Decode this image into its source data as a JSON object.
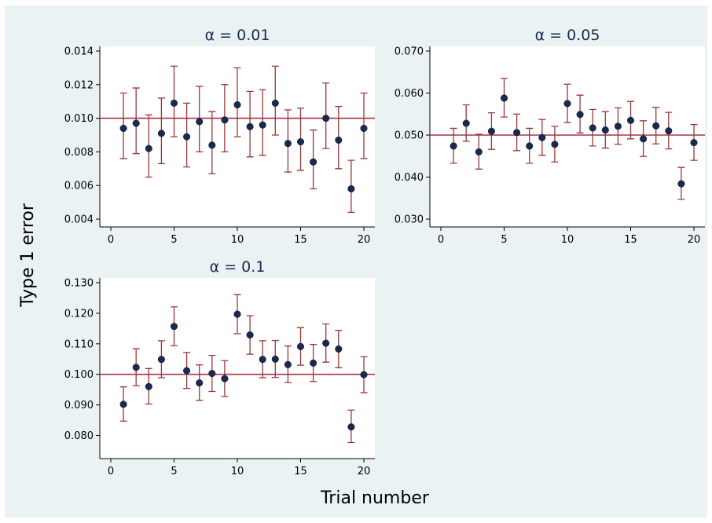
{
  "figure": {
    "ylabel": "Type 1 error",
    "xlabel": "Trial number"
  },
  "chart_data": [
    {
      "type": "scatter",
      "title": "α = 0.01",
      "xlim": [
        0,
        20
      ],
      "ylim": [
        0.004,
        0.014
      ],
      "xticks": [
        0,
        5,
        10,
        15,
        20
      ],
      "yticks": [
        0.004,
        0.006,
        0.008,
        0.01,
        0.012,
        0.014
      ],
      "ytick_labels": [
        "0.004",
        "0.006",
        "0.008",
        "0.010",
        "0.012",
        "0.014"
      ],
      "reference_line": 0.01,
      "x": [
        1,
        2,
        3,
        4,
        5,
        6,
        7,
        8,
        9,
        10,
        11,
        12,
        13,
        14,
        15,
        16,
        17,
        18,
        19,
        20
      ],
      "y": [
        0.0094,
        0.0097,
        0.0082,
        0.0091,
        0.0109,
        0.0089,
        0.0098,
        0.0084,
        0.0099,
        0.0108,
        0.0095,
        0.0096,
        0.0109,
        0.0085,
        0.0086,
        0.0074,
        0.01,
        0.0087,
        0.0058,
        0.0094
      ],
      "lower": [
        0.0076,
        0.0079,
        0.0065,
        0.0073,
        0.0089,
        0.0071,
        0.008,
        0.0067,
        0.008,
        0.0089,
        0.0077,
        0.0078,
        0.009,
        0.0068,
        0.0069,
        0.0058,
        0.0082,
        0.007,
        0.0044,
        0.0076
      ],
      "upper": [
        0.0115,
        0.0118,
        0.0102,
        0.0112,
        0.0131,
        0.0109,
        0.0119,
        0.0104,
        0.012,
        0.013,
        0.0116,
        0.0117,
        0.0131,
        0.0105,
        0.0106,
        0.0093,
        0.0121,
        0.0107,
        0.0075,
        0.0115
      ]
    },
    {
      "type": "scatter",
      "title": "α = 0.05",
      "xlim": [
        0,
        20
      ],
      "ylim": [
        0.03,
        0.07
      ],
      "xticks": [
        0,
        5,
        10,
        15,
        20
      ],
      "yticks": [
        0.03,
        0.04,
        0.05,
        0.06,
        0.07
      ],
      "ytick_labels": [
        "0.030",
        "0.040",
        "0.050",
        "0.060",
        "0.070"
      ],
      "reference_line": 0.05,
      "x": [
        1,
        2,
        3,
        4,
        5,
        6,
        7,
        8,
        9,
        10,
        11,
        12,
        13,
        14,
        15,
        16,
        17,
        18,
        19,
        20
      ],
      "y": [
        0.0474,
        0.0528,
        0.046,
        0.0509,
        0.0588,
        0.0506,
        0.0474,
        0.0494,
        0.0478,
        0.0575,
        0.0549,
        0.0517,
        0.0512,
        0.0521,
        0.0535,
        0.0491,
        0.0522,
        0.051,
        0.0384,
        0.0482
      ],
      "lower": [
        0.0433,
        0.0485,
        0.0419,
        0.0466,
        0.0543,
        0.0463,
        0.0433,
        0.0452,
        0.0436,
        0.053,
        0.0505,
        0.0474,
        0.0469,
        0.0478,
        0.0491,
        0.0449,
        0.0479,
        0.0467,
        0.0347,
        0.044
      ],
      "upper": [
        0.0516,
        0.0572,
        0.0502,
        0.0553,
        0.0635,
        0.055,
        0.0516,
        0.0537,
        0.0521,
        0.0621,
        0.0595,
        0.0561,
        0.0556,
        0.0565,
        0.058,
        0.0534,
        0.0566,
        0.0554,
        0.0423,
        0.0525
      ]
    },
    {
      "type": "scatter",
      "title": "α = 0.1",
      "xlim": [
        0,
        20
      ],
      "ylim": [
        0.075,
        0.13
      ],
      "xticks": [
        0,
        5,
        10,
        15,
        20
      ],
      "yticks": [
        0.08,
        0.09,
        0.1,
        0.11,
        0.12,
        0.13
      ],
      "ytick_labels": [
        "0.080",
        "0.090",
        "0.100",
        "0.110",
        "0.120",
        "0.130"
      ],
      "reference_line": 0.1,
      "x": [
        1,
        2,
        3,
        4,
        5,
        6,
        7,
        8,
        9,
        10,
        11,
        12,
        13,
        14,
        15,
        16,
        17,
        18,
        19,
        20
      ],
      "y": [
        0.0902,
        0.1023,
        0.096,
        0.1049,
        0.1157,
        0.1012,
        0.0972,
        0.1003,
        0.0986,
        0.1197,
        0.1129,
        0.1049,
        0.105,
        0.1032,
        0.1091,
        0.1037,
        0.1102,
        0.1083,
        0.0828,
        0.0999
      ],
      "lower": [
        0.0847,
        0.0963,
        0.0903,
        0.0989,
        0.1094,
        0.0954,
        0.0915,
        0.0944,
        0.0928,
        0.1133,
        0.1066,
        0.0989,
        0.099,
        0.0973,
        0.103,
        0.0977,
        0.104,
        0.1022,
        0.0777,
        0.094
      ],
      "upper": [
        0.0959,
        0.1084,
        0.1019,
        0.111,
        0.1221,
        0.1072,
        0.1031,
        0.1062,
        0.1045,
        0.1261,
        0.1192,
        0.111,
        0.1111,
        0.1093,
        0.1153,
        0.1098,
        0.1165,
        0.1144,
        0.0883,
        0.1058
      ]
    }
  ]
}
